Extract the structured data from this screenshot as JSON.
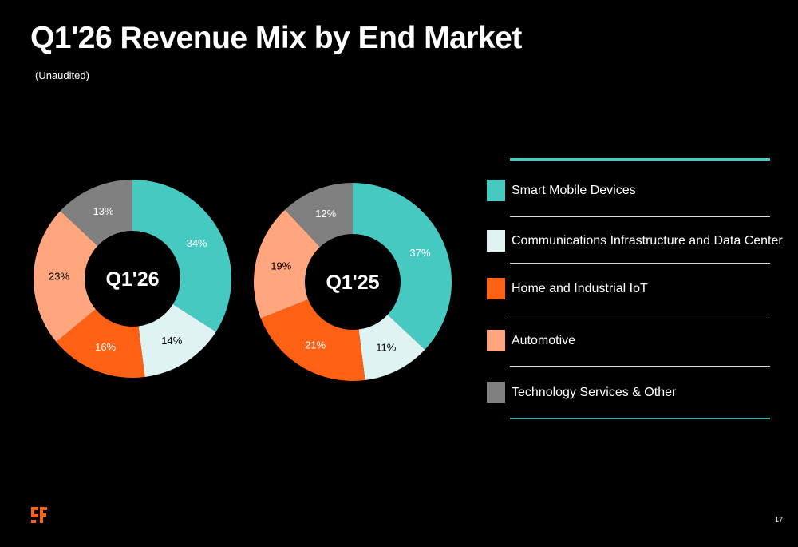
{
  "page": {
    "title": "Q1'26 Revenue Mix by End Market",
    "subtitle": "(Unaudited)",
    "page_number": "17"
  },
  "chart_data": [
    {
      "type": "pie",
      "title": "Q1'26",
      "categories": [
        "Smart Mobile Devices",
        "Communications Infrastructure and Data Center",
        "Home and Industrial IoT",
        "Automotive",
        "Technology Services & Other"
      ],
      "values": [
        34,
        14,
        16,
        23,
        13
      ],
      "labels": [
        "34%",
        "14%",
        "16%",
        "23%",
        "13%"
      ],
      "colors": [
        "#45c9c1",
        "#dff3f2",
        "#ff6114",
        "#ffa67f",
        "#808080"
      ]
    },
    {
      "type": "pie",
      "title": "Q1'25",
      "categories": [
        "Smart Mobile Devices",
        "Communications Infrastructure and Data Center",
        "Home and Industrial IoT",
        "Automotive",
        "Technology Services & Other"
      ],
      "values": [
        37,
        11,
        21,
        19,
        12
      ],
      "labels": [
        "37%",
        "11%",
        "21%",
        "19%",
        "12%"
      ],
      "colors": [
        "#45c9c1",
        "#dff3f2",
        "#ff6114",
        "#ffa67f",
        "#808080"
      ]
    }
  ],
  "legend": {
    "items": [
      {
        "label": "Smart Mobile Devices",
        "color": "#45c9c1"
      },
      {
        "label": "Communications Infrastructure and Data Center",
        "color": "#dff3f2"
      },
      {
        "label": "Home and Industrial IoT",
        "color": "#ff6114"
      },
      {
        "label": "Automotive",
        "color": "#ffa67f"
      },
      {
        "label": "Technology Services & Other",
        "color": "#808080"
      }
    ]
  },
  "colors": {
    "background": "#000000",
    "accent_rule": "#45c9c1",
    "brand_orange": "#ff6114"
  },
  "logo": {
    "icon": "gf-logo-icon"
  }
}
